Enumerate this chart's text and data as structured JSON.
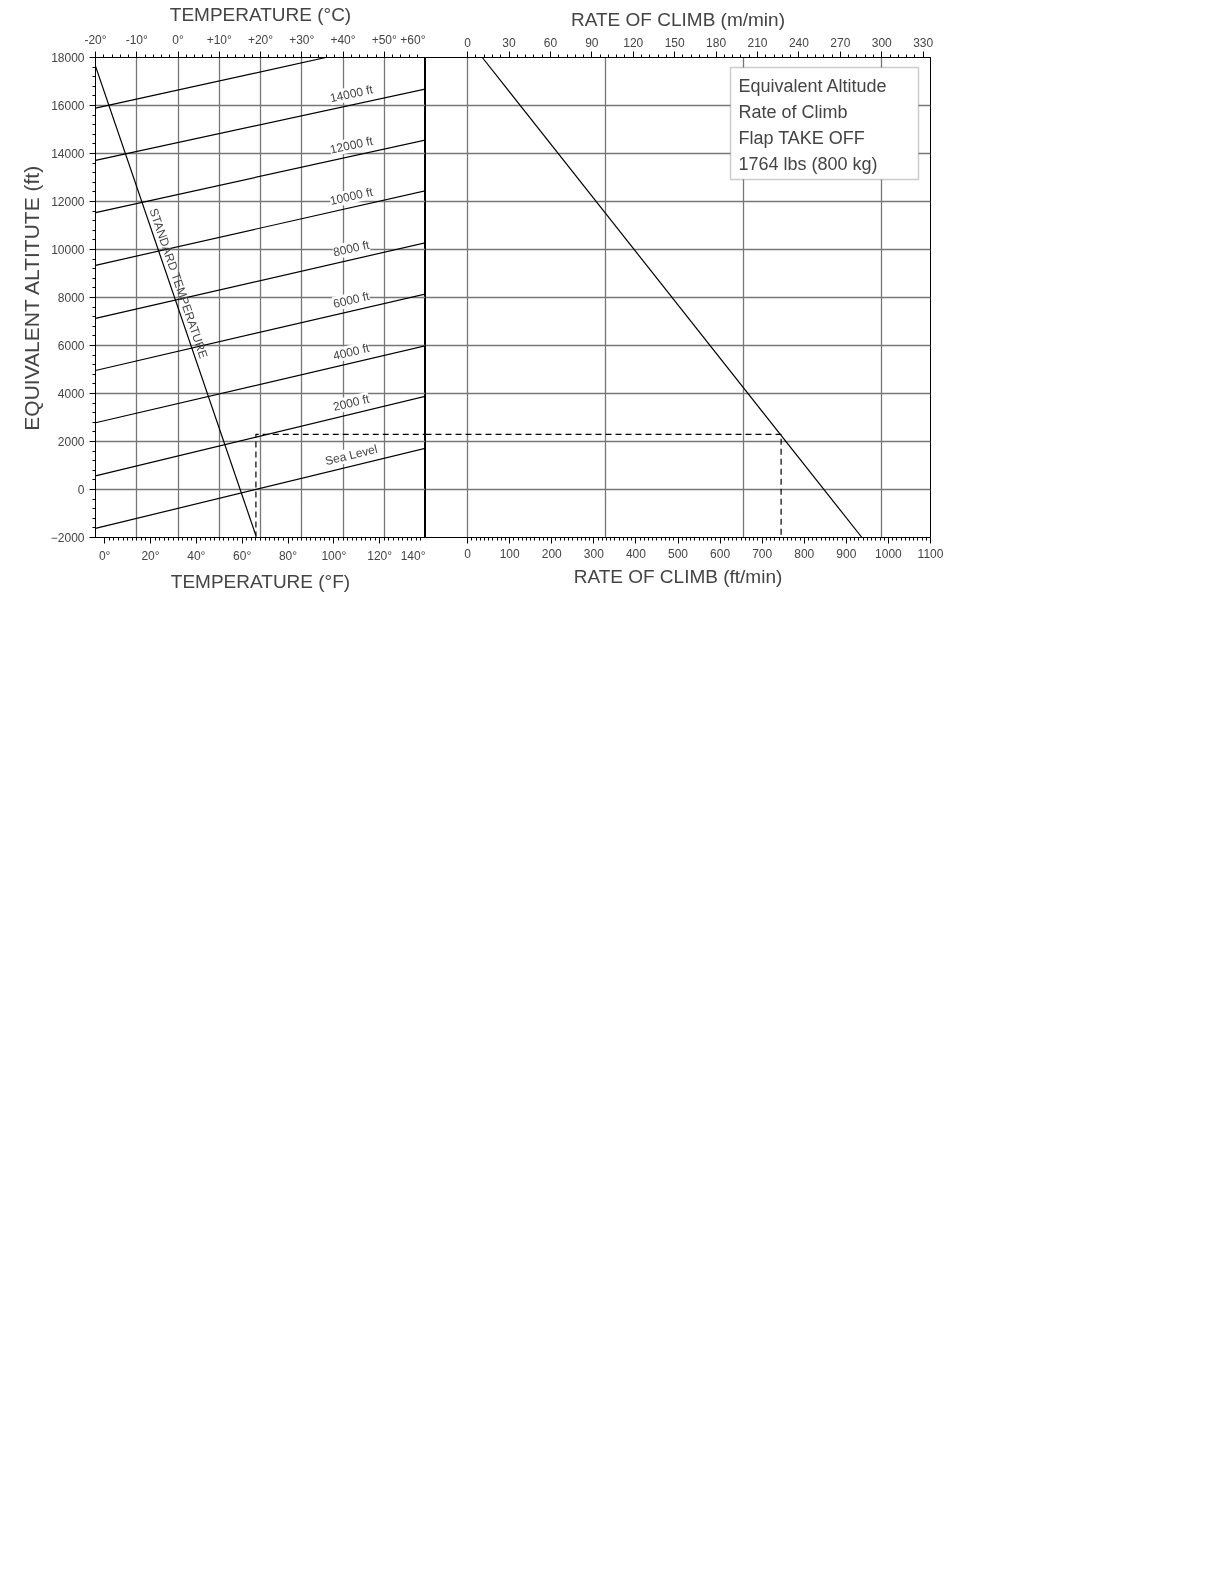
{
  "chart_data": [
    {
      "type": "line",
      "xlabel": "TEMPERATURE (°F)",
      "x2label": "TEMPERATURE (°C)",
      "ylabel": "EQUIVALENT ALTITUTE (ft)",
      "xlim": [
        -4,
        140
      ],
      "xticks": [
        {
          "value": 0,
          "label": "0°"
        },
        {
          "value": 20,
          "label": "20°"
        },
        {
          "value": 40,
          "label": "40°"
        },
        {
          "value": 60,
          "label": "60°"
        },
        {
          "value": 80,
          "label": "80°"
        },
        {
          "value": 100,
          "label": "100°"
        },
        {
          "value": 120,
          "label": "120°"
        },
        {
          "value": 140,
          "label": "140°"
        }
      ],
      "x2lim": [
        -20,
        60
      ],
      "x2ticks": [
        {
          "value": -20,
          "label": "-20°"
        },
        {
          "value": -10,
          "label": "-10°"
        },
        {
          "value": 0,
          "label": "0°"
        },
        {
          "value": 10,
          "label": "+10°"
        },
        {
          "value": 20,
          "label": "+20°"
        },
        {
          "value": 30,
          "label": "+30°"
        },
        {
          "value": 40,
          "label": "+40°"
        },
        {
          "value": 50,
          "label": "+50°"
        },
        {
          "value": 60,
          "label": "+60°"
        }
      ],
      "ylim": [
        -2000,
        18000
      ],
      "yticks": [
        -2000,
        0,
        2000,
        4000,
        6000,
        8000,
        10000,
        12000,
        14000,
        16000,
        18000
      ],
      "grid": true,
      "series": [
        {
          "name": "Sea Level",
          "color": "#000000",
          "x": [
            -4,
            140
          ],
          "values": [
            -1620,
            1720
          ]
        },
        {
          "name": "2000 ft",
          "color": "#000000",
          "x": [
            -4,
            140
          ],
          "values": [
            570,
            3890
          ]
        },
        {
          "name": "4000 ft",
          "color": "#000000",
          "x": [
            -4,
            140
          ],
          "values": [
            2780,
            5990
          ]
        },
        {
          "name": "6000 ft",
          "color": "#000000",
          "x": [
            -4,
            140
          ],
          "values": [
            4960,
            8150
          ]
        },
        {
          "name": "8000 ft",
          "color": "#000000",
          "x": [
            -4,
            140
          ],
          "values": [
            7130,
            10280
          ]
        },
        {
          "name": "10000 ft",
          "color": "#000000",
          "x": [
            -4,
            140
          ],
          "values": [
            9340,
            12450
          ]
        },
        {
          "name": "12000 ft",
          "color": "#000000",
          "x": [
            -4,
            140
          ],
          "values": [
            11540,
            14560
          ]
        },
        {
          "name": "14000 ft",
          "color": "#000000",
          "x": [
            -4,
            140
          ],
          "values": [
            13710,
            16690
          ]
        },
        {
          "color": "#000000",
          "x": [
            -4,
            96.5
          ],
          "values": [
            15890,
            18000
          ]
        },
        {
          "name": "STANDARD TEMPERATURE",
          "color": "#000000",
          "x": [
            -4,
            66
          ],
          "values": [
            17640,
            -1920
          ]
        },
        {
          "color": "#000000",
          "line_style": "dashed",
          "x": [
            66,
            66,
            140
          ],
          "values": [
            -2000,
            2300,
            2300
          ]
        }
      ]
    },
    {
      "type": "line",
      "xlabel": "RATE OF CLIMB (ft/min)",
      "x2label": "RATE OF CLIMB (m/min)",
      "xlim": [
        -100,
        1100
      ],
      "xticks": [
        0,
        100,
        200,
        300,
        400,
        500,
        600,
        700,
        800,
        900,
        1000,
        1100
      ],
      "x2lim": [
        -30.5,
        335.3
      ],
      "x2ticks": [
        0,
        30,
        60,
        90,
        120,
        150,
        180,
        210,
        240,
        270,
        300,
        330
      ],
      "ylim": [
        -2000,
        18000
      ],
      "tick_labels": "x",
      "grid": true,
      "annotations": [
        "Equivalent Altitude",
        "Rate of Climb",
        "Flap TAKE OFF",
        "1764 lbs (800 kg)"
      ],
      "series": [
        {
          "color": "#000000",
          "x": [
            35,
            937
          ],
          "values": [
            18000,
            -2000
          ]
        },
        {
          "color": "#000000",
          "line_style": "dashed",
          "x": [
            -100,
            745,
            745
          ],
          "values": [
            2300,
            2300,
            -2000
          ]
        }
      ]
    }
  ]
}
